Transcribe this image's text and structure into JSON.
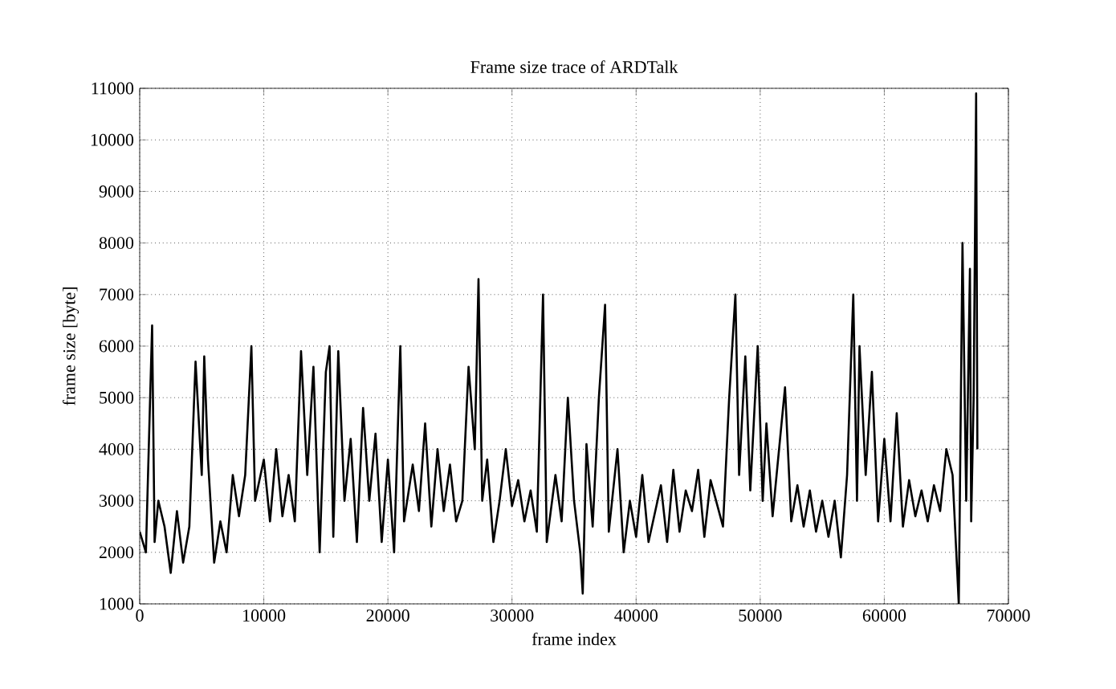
{
  "chart_data": {
    "type": "line",
    "title": "Frame size trace of ARDTalk",
    "xlabel": "frame index",
    "ylabel": "frame size [byte]",
    "xlim": [
      0,
      70000
    ],
    "ylim": [
      1000,
      11000
    ],
    "xticks": [
      0,
      10000,
      20000,
      30000,
      40000,
      50000,
      60000,
      70000
    ],
    "yticks": [
      1000,
      2000,
      3000,
      4000,
      5000,
      6000,
      7000,
      8000,
      9000,
      10000,
      11000
    ],
    "grid": true,
    "marker": "none",
    "line_style": "solid",
    "series": [
      {
        "color": "#000000",
        "x": [
          0,
          500,
          1000,
          1200,
          1500,
          2000,
          2500,
          3000,
          3500,
          4000,
          4500,
          5000,
          5200,
          5500,
          6000,
          6500,
          7000,
          7500,
          8000,
          8500,
          9000,
          9300,
          10000,
          10500,
          11000,
          11500,
          12000,
          12500,
          13000,
          13500,
          14000,
          14500,
          15000,
          15300,
          15600,
          16000,
          16500,
          17000,
          17500,
          18000,
          18500,
          19000,
          19500,
          20000,
          20500,
          21000,
          21300,
          22000,
          22500,
          23000,
          23500,
          24000,
          24500,
          25000,
          25500,
          26000,
          26500,
          27000,
          27300,
          27600,
          28000,
          28500,
          29000,
          29500,
          30000,
          30500,
          31000,
          31500,
          32000,
          32500,
          32800,
          33500,
          34000,
          34500,
          35000,
          35500,
          35700,
          36000,
          36500,
          37000,
          37500,
          37800,
          38500,
          39000,
          39500,
          40000,
          40500,
          41000,
          42000,
          42500,
          43000,
          43500,
          44000,
          44500,
          45000,
          45500,
          46000,
          47000,
          47500,
          48000,
          48300,
          48800,
          49200,
          49800,
          50200,
          50500,
          51000,
          52000,
          52500,
          53000,
          53500,
          54000,
          54500,
          55000,
          55500,
          56000,
          56500,
          57000,
          57500,
          57800,
          58000,
          58500,
          59000,
          59500,
          60000,
          60500,
          61000,
          61500,
          62000,
          62500,
          63000,
          63500,
          64000,
          64500,
          65000,
          65500,
          66000,
          66300,
          66600,
          66900,
          67000,
          67200,
          67400,
          67500
        ],
        "values": [
          2400,
          2000,
          6400,
          2200,
          3000,
          2500,
          1600,
          2800,
          1800,
          2500,
          5700,
          3500,
          5800,
          3800,
          1800,
          2600,
          2000,
          3500,
          2700,
          3500,
          6000,
          3000,
          3800,
          2600,
          4000,
          2700,
          3500,
          2600,
          5900,
          3500,
          5600,
          2000,
          5500,
          6000,
          2300,
          5900,
          3000,
          4200,
          2200,
          4800,
          3000,
          4300,
          2200,
          3800,
          2000,
          6000,
          2600,
          3700,
          2800,
          4500,
          2500,
          4000,
          2800,
          3700,
          2600,
          3000,
          5600,
          4000,
          7300,
          3000,
          3800,
          2200,
          3000,
          4000,
          2900,
          3400,
          2600,
          3200,
          2400,
          7000,
          2200,
          3500,
          2600,
          5000,
          3000,
          2000,
          1200,
          4100,
          2500,
          5000,
          6800,
          2400,
          4000,
          2000,
          3000,
          2300,
          3500,
          2200,
          3300,
          2200,
          3600,
          2400,
          3200,
          2800,
          3600,
          2300,
          3400,
          2500,
          5000,
          7000,
          3500,
          5800,
          3200,
          6000,
          3000,
          4500,
          2700,
          5200,
          2600,
          3300,
          2500,
          3200,
          2400,
          3000,
          2300,
          3000,
          1900,
          3500,
          7000,
          3000,
          6000,
          3500,
          5500,
          2600,
          4200,
          2600,
          4700,
          2500,
          3400,
          2700,
          3200,
          2600,
          3300,
          2800,
          4000,
          3500,
          1000,
          8000,
          3000,
          7500,
          2600,
          5000,
          10900,
          4000
        ]
      }
    ]
  }
}
